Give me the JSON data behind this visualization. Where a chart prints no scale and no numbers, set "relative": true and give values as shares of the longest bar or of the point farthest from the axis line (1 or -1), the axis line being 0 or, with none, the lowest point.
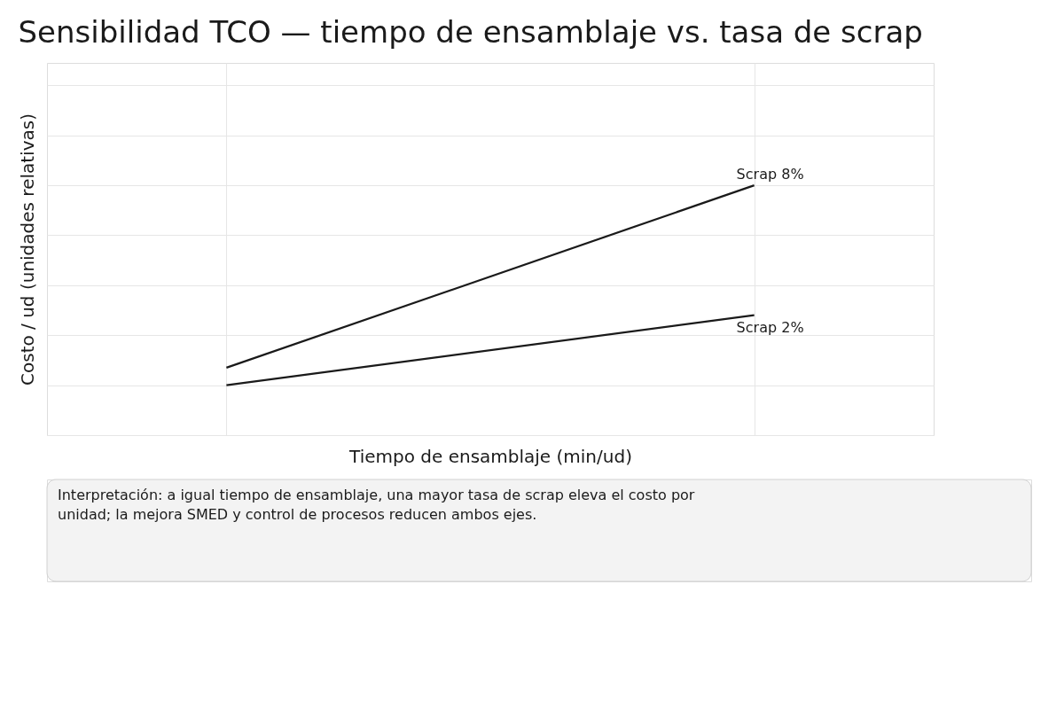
{
  "chart_data": {
    "type": "line",
    "title": "Sensibilidad TCO — tiempo de ensamblaje vs. tasa de scrap",
    "xlabel": "Tiempo de ensamblaje (min/ud)",
    "ylabel": "Costo / ud (unidades relativas)",
    "relative": true,
    "categories": [
      null,
      null
    ],
    "grid": true,
    "legend": false,
    "marker": "none",
    "line_style": "solid",
    "series": [
      {
        "name": "Scrap 8%",
        "color": "#1a1a1a",
        "values": [
          0.27,
          1.0
        ]
      },
      {
        "name": "Scrap 2%",
        "color": "#1a1a1a",
        "values": [
          0.2,
          0.48
        ]
      }
    ],
    "annotations": [
      "Interpretación: a igual tiempo de ensamblaje, una mayor tasa de scrap eleva el costo por unidad; la mejora SMED y control de procesos reducen ambos ejes."
    ]
  }
}
